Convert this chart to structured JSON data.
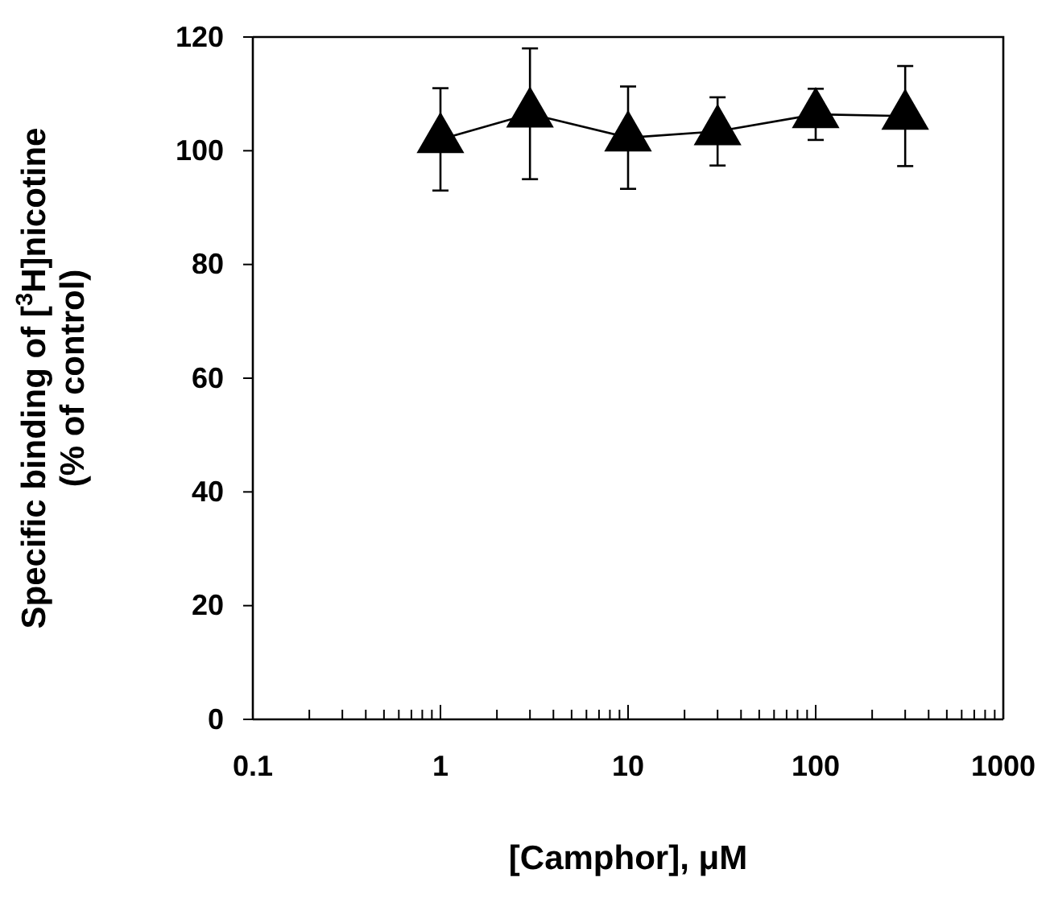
{
  "chart_data": {
    "type": "line",
    "xlabel": "[Camphor], μM",
    "ylabel": "Specific binding of [$^{3}$H]nicotine\n(% of control)",
    "log": "x",
    "x": [
      1,
      3,
      10,
      30,
      100,
      300
    ],
    "series": [
      {
        "color": "#000000",
        "values": [
          102,
          106.5,
          102.3,
          103.4,
          106.4,
          106.1
        ],
        "errors": [
          9,
          11.5,
          9,
          6,
          4.5,
          8.8
        ]
      }
    ],
    "xlim": [
      0.1,
      1000
    ],
    "xticks": [
      0.1,
      {
        "value": 0.2,
        "label": null
      },
      {
        "value": 0.3,
        "label": null
      },
      {
        "value": 0.4,
        "label": null
      },
      {
        "value": 0.5,
        "label": null
      },
      {
        "value": 0.6,
        "label": null
      },
      {
        "value": 0.7,
        "label": null
      },
      {
        "value": 0.8,
        "label": null
      },
      {
        "value": 0.9,
        "label": null
      },
      1,
      {
        "value": 2,
        "label": null
      },
      {
        "value": 3,
        "label": null
      },
      {
        "value": 4,
        "label": null
      },
      {
        "value": 5,
        "label": null
      },
      {
        "value": 6,
        "label": null
      },
      {
        "value": 7,
        "label": null
      },
      {
        "value": 8,
        "label": null
      },
      {
        "value": 9,
        "label": null
      },
      10,
      {
        "value": 20,
        "label": null
      },
      {
        "value": 30,
        "label": null
      },
      {
        "value": 40,
        "label": null
      },
      {
        "value": 50,
        "label": null
      },
      {
        "value": 60,
        "label": null
      },
      {
        "value": 70,
        "label": null
      },
      {
        "value": 80,
        "label": null
      },
      {
        "value": 90,
        "label": null
      },
      100,
      {
        "value": 200,
        "label": null
      },
      {
        "value": 300,
        "label": null
      },
      {
        "value": 400,
        "label": null
      },
      {
        "value": 500,
        "label": null
      },
      {
        "value": 600,
        "label": null
      },
      {
        "value": 700,
        "label": null
      },
      {
        "value": 800,
        "label": null
      },
      {
        "value": 900,
        "label": null
      },
      1000
    ],
    "ylim": [
      0,
      120
    ],
    "yticks": [
      0,
      20,
      40,
      60,
      80,
      100,
      120
    ],
    "grid": false,
    "marker": "triangle",
    "line_style": "solid"
  }
}
